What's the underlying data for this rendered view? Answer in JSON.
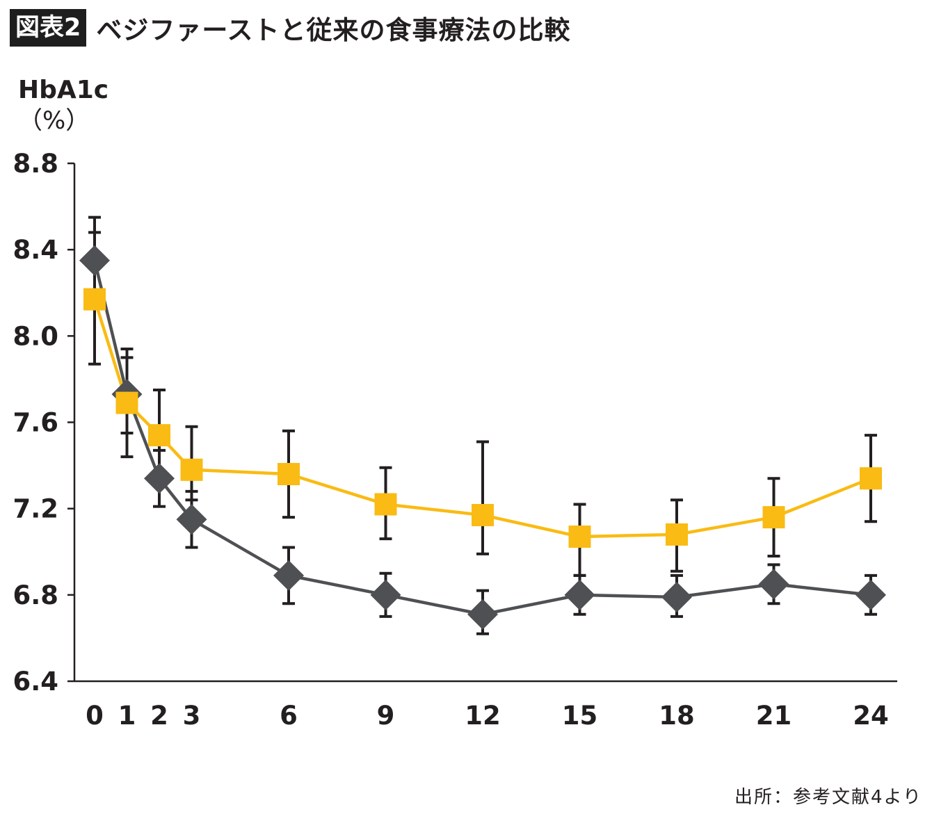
{
  "header": {
    "badge": "図表2",
    "title": "ベジファーストと従来の食事療法の比較"
  },
  "axis": {
    "ylabel_line1": "HbA1c",
    "ylabel_line2": "（%）"
  },
  "source": "出所：参考文献4より",
  "colors": {
    "yellow_series": "#f9bb14",
    "gray_series": "#4e5053",
    "error_bars": "#231f20",
    "axis": "#231f20"
  },
  "chart_data": {
    "type": "line",
    "x": [
      0,
      1,
      2,
      3,
      6,
      9,
      12,
      15,
      18,
      21,
      24
    ],
    "x_ticks": [
      "0",
      "1",
      "2",
      "3",
      "6",
      "9",
      "12",
      "15",
      "18",
      "21",
      "24"
    ],
    "ylim": [
      6.4,
      8.8
    ],
    "y_ticks": [
      "6.4",
      "6.8",
      "7.2",
      "7.6",
      "8.0",
      "8.4",
      "8.8"
    ],
    "ylabel": "HbA1c（%）",
    "xlabel": "",
    "grid": false,
    "series": [
      {
        "marker": "square",
        "color": "#f9bb14",
        "values": [
          8.17,
          7.69,
          7.54,
          7.38,
          7.36,
          7.22,
          7.17,
          7.07,
          7.08,
          7.16,
          7.34
        ],
        "error_low": [
          7.87,
          7.44,
          7.33,
          7.24,
          7.16,
          7.06,
          6.99,
          6.89,
          6.91,
          6.98,
          7.14
        ],
        "error_high": [
          8.48,
          7.94,
          7.75,
          7.58,
          7.56,
          7.39,
          7.51,
          7.22,
          7.24,
          7.34,
          7.54
        ]
      },
      {
        "marker": "diamond",
        "color": "#4e5053",
        "values": [
          8.35,
          7.73,
          7.34,
          7.15,
          6.89,
          6.8,
          6.71,
          6.8,
          6.79,
          6.85,
          6.8
        ],
        "error_low": [
          8.17,
          7.55,
          7.21,
          7.02,
          6.76,
          6.7,
          6.62,
          6.71,
          6.7,
          6.76,
          6.71
        ],
        "error_high": [
          8.55,
          7.9,
          7.47,
          7.28,
          7.02,
          6.9,
          6.82,
          6.89,
          6.89,
          6.94,
          6.89
        ]
      }
    ]
  }
}
